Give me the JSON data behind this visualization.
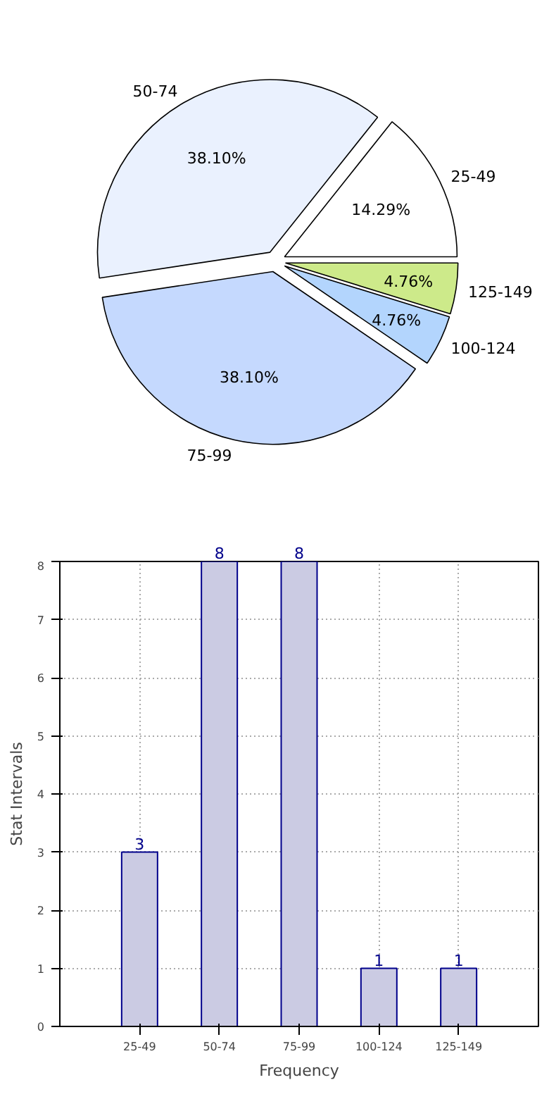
{
  "chart_data": [
    {
      "type": "pie",
      "categories": [
        "25-49",
        "50-74",
        "75-99",
        "100-124",
        "125-149"
      ],
      "values": [
        14.29,
        38.1,
        38.1,
        4.76,
        4.76
      ],
      "colors": [
        "#ffffff",
        "#eaf1fe",
        "#c5d9fe",
        "#b3d5fd",
        "#cdea8a"
      ],
      "value_labels": [
        "14.29%",
        "38.10%",
        "38.10%",
        "4.76%",
        "4.76%"
      ]
    },
    {
      "type": "bar",
      "xlabel": "Frequency",
      "ylabel": "Stat Intervals",
      "categories": [
        "25-49",
        "50-74",
        "75-99",
        "100-124",
        "125-149"
      ],
      "values": [
        3,
        8,
        8,
        1,
        1
      ],
      "color": "#cbcbe3",
      "ylim": [
        0,
        8
      ],
      "yticks": [
        0,
        1,
        2,
        3,
        4,
        5,
        6,
        7,
        8
      ],
      "grid": true,
      "data_labels": true
    }
  ]
}
